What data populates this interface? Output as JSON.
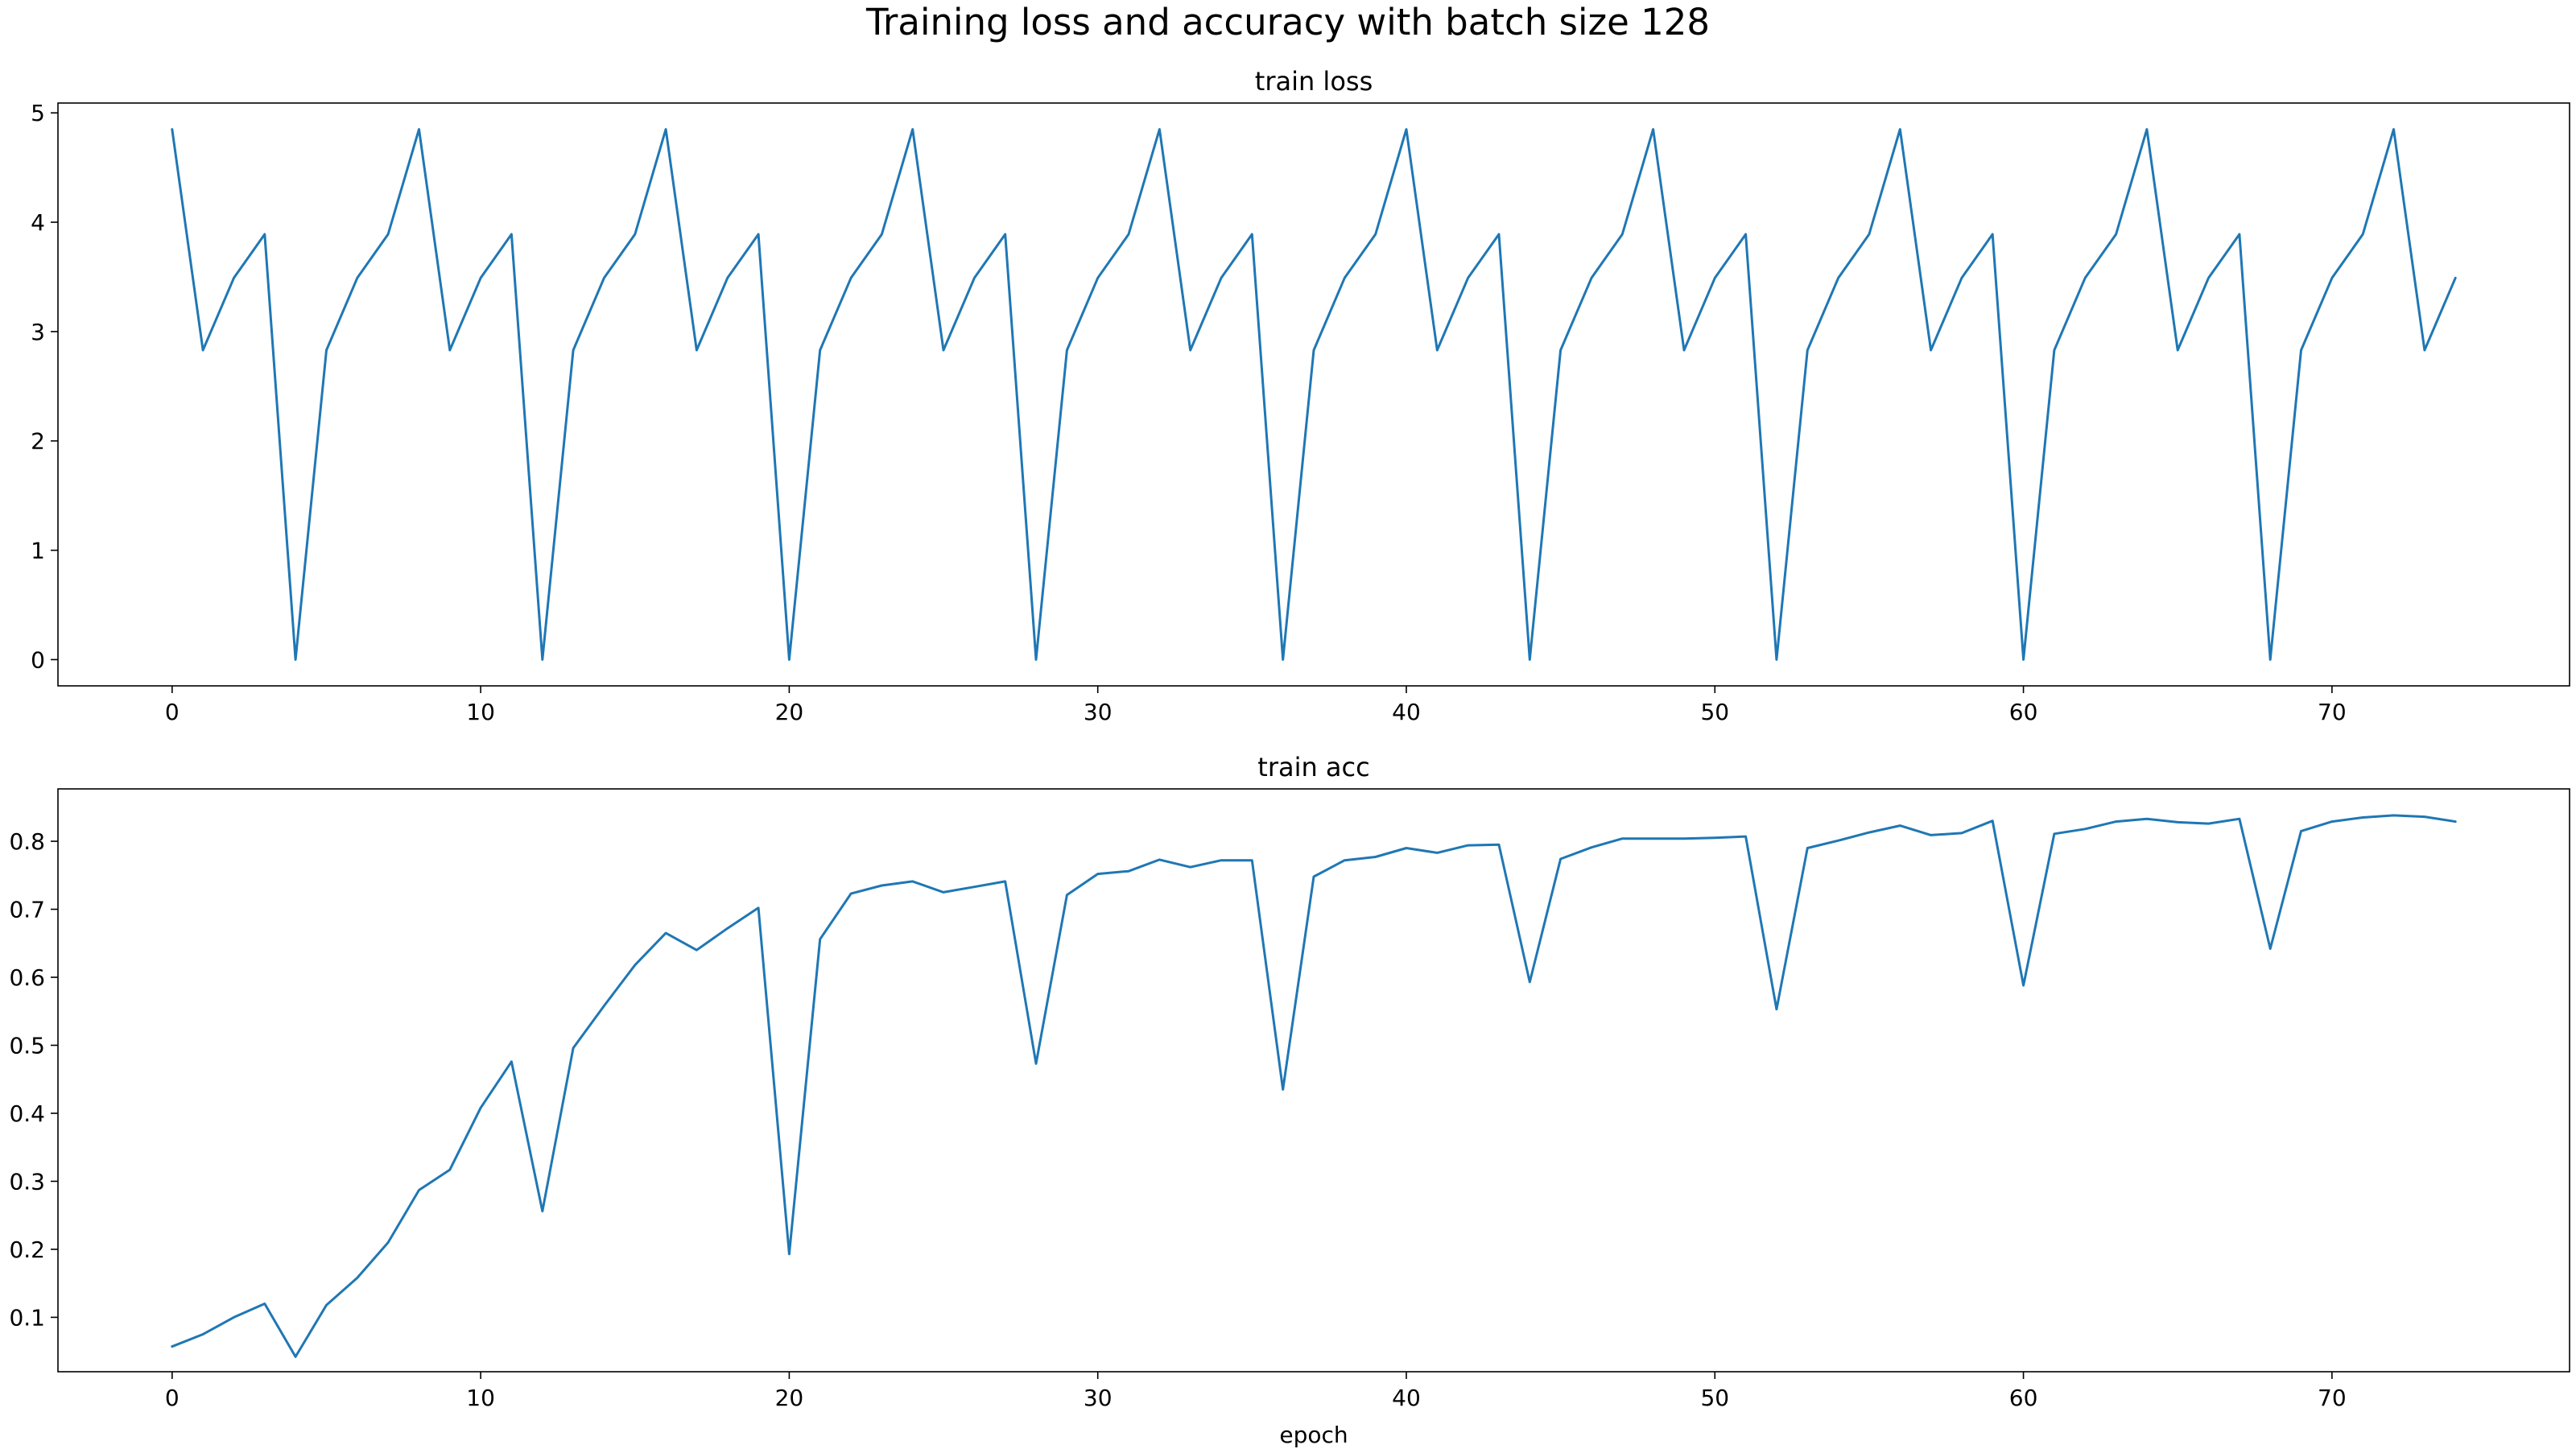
{
  "figure": {
    "title": "Training loss and accuracy with batch size 128"
  },
  "chart_data": [
    {
      "type": "line",
      "title": "train loss",
      "xlabel": "",
      "ylabel": "",
      "xlim": [
        -3.7,
        77.7
      ],
      "ylim": [
        -0.24,
        5.09
      ],
      "xticks": [
        0,
        10,
        20,
        30,
        40,
        50,
        60,
        70
      ],
      "yticks": [
        0,
        1,
        2,
        3,
        4,
        5
      ],
      "grid": false,
      "color": "#1f77b4",
      "series": [
        {
          "values": [
            4.85,
            2.83,
            3.49,
            3.89,
            0.0,
            2.83,
            3.49,
            3.89,
            4.85,
            2.83,
            3.49,
            3.89,
            0.0,
            2.83,
            3.49,
            3.89,
            4.85,
            2.83,
            3.49,
            3.89,
            0.0,
            2.83,
            3.49,
            3.89,
            4.85,
            2.83,
            3.49,
            3.89,
            0.0,
            2.83,
            3.49,
            3.89,
            4.85,
            2.83,
            3.49,
            3.89,
            0.0,
            2.83,
            3.49,
            3.89,
            4.85,
            2.83,
            3.49,
            3.89,
            0.0,
            2.83,
            3.49,
            3.89,
            4.85,
            2.83,
            3.49,
            3.89,
            0.0,
            2.83,
            3.49,
            3.89,
            4.85,
            2.83,
            3.49,
            3.89,
            0.0,
            2.83,
            3.49,
            3.89,
            4.85,
            2.83,
            3.49,
            3.89,
            0.0,
            2.83,
            3.49,
            3.89,
            4.85,
            2.83,
            3.49
          ]
        }
      ]
    },
    {
      "type": "line",
      "title": "train acc",
      "xlabel": "epoch",
      "ylabel": "",
      "xlim": [
        -3.7,
        77.7
      ],
      "ylim": [
        0.02,
        0.877
      ],
      "xticks": [
        0,
        10,
        20,
        30,
        40,
        50,
        60,
        70
      ],
      "yticks": [
        0.1,
        0.2,
        0.3,
        0.4,
        0.5,
        0.6,
        0.7,
        0.8
      ],
      "grid": false,
      "color": "#1f77b4",
      "series": [
        {
          "values": [
            0.057,
            0.075,
            0.1,
            0.12,
            0.042,
            0.118,
            0.158,
            0.21,
            0.287,
            0.317,
            0.408,
            0.476,
            0.256,
            0.496,
            0.558,
            0.618,
            0.665,
            0.64,
            0.672,
            0.702,
            0.193,
            0.656,
            0.723,
            0.735,
            0.741,
            0.725,
            0.733,
            0.741,
            0.473,
            0.721,
            0.752,
            0.756,
            0.773,
            0.762,
            0.772,
            0.772,
            0.435,
            0.748,
            0.772,
            0.777,
            0.79,
            0.783,
            0.794,
            0.795,
            0.593,
            0.774,
            0.791,
            0.804,
            0.804,
            0.804,
            0.805,
            0.807,
            0.553,
            0.79,
            0.801,
            0.813,
            0.823,
            0.809,
            0.812,
            0.83,
            0.588,
            0.811,
            0.818,
            0.829,
            0.833,
            0.828,
            0.826,
            0.833,
            0.642,
            0.815,
            0.829,
            0.835,
            0.838,
            0.836,
            0.829
          ]
        }
      ]
    }
  ]
}
